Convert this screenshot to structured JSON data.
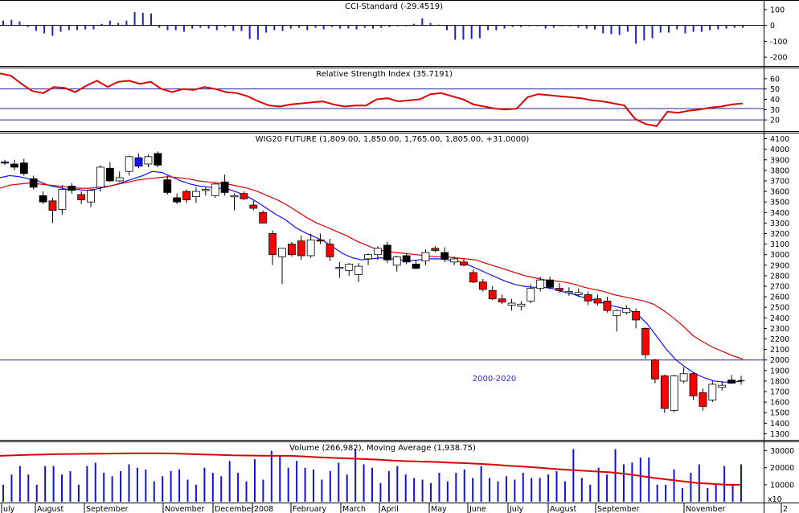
{
  "colors": {
    "background": "#ffffff",
    "frame": "#000000",
    "grid_h": "#2020a0",
    "cci_bar": "#1f1fc8",
    "rsi_line": "#e00000",
    "bull_fill": "#ffffff",
    "bear_fill": "#000000",
    "red_fill": "#ff0000",
    "blue_fill": "#1515ff",
    "ma_short": "#1010ff",
    "ma_long": "#d80000",
    "volume_bar": "#1111dd",
    "volume_ma": "#dd0000",
    "annotation": "#2b2bd6"
  },
  "panels": {
    "cci_title": "CCI-Standard (-29.4519)",
    "rsi_title": "Relative Strength Index (35.7191)",
    "price_title": "WIG20 FUTURE (1,809.00, 1,850.00, 1,765.00, 1,805.00, +31.0000)",
    "volume_title": "Volume (266,982), Moving Average (1,938.75)",
    "annotation": "2000-2020",
    "volume_unit": "x10",
    "right_edge_label": "2"
  },
  "months": [
    "uly",
    "August",
    "September",
    "November",
    "December",
    "2008",
    "February",
    "March",
    "April",
    "May",
    "June",
    "July",
    "August",
    "September",
    "November"
  ],
  "chart_data": [
    {
      "type": "bar",
      "title": "CCI-Standard (-29.4519)",
      "ylim": [
        -250,
        150
      ],
      "yticks": [
        100,
        0,
        -100,
        -200
      ],
      "values": [
        30,
        35,
        25,
        -10,
        -35,
        -50,
        -65,
        -40,
        -30,
        -30,
        -25,
        -25,
        10,
        30,
        15,
        30,
        85,
        80,
        75,
        -15,
        -30,
        -30,
        -40,
        -20,
        -15,
        -20,
        -30,
        -10,
        -35,
        -35,
        -85,
        -90,
        -45,
        -30,
        -35,
        -20,
        -15,
        -30,
        -15,
        -25,
        -10,
        -20,
        -20,
        -25,
        -15,
        -20,
        -15,
        -10,
        -5,
        -5,
        10,
        45,
        15,
        5,
        -30,
        -90,
        -90,
        -85,
        -80,
        -30,
        -30,
        -20,
        -10,
        -10,
        -5,
        -5,
        -20,
        -15,
        -5,
        -5,
        -15,
        -20,
        -25,
        -50,
        -55,
        -60,
        -40,
        -115,
        -95,
        -80,
        -45,
        -45,
        -25,
        -50,
        -40,
        -40,
        -30,
        -25,
        -20,
        -15,
        -15
      ]
    },
    {
      "type": "line",
      "title": "Relative Strength Index (35.7191)",
      "ylim": [
        10,
        70
      ],
      "yticks": [
        60,
        50,
        40,
        30,
        20
      ],
      "reference_lines": [
        50,
        31,
        20
      ],
      "values": [
        65,
        63,
        55,
        48,
        46,
        52,
        51,
        47,
        53,
        58,
        52,
        57,
        58,
        55,
        57,
        50,
        47,
        50,
        49,
        52,
        50,
        47,
        46,
        43,
        38,
        34,
        33,
        35,
        36,
        37,
        38,
        35,
        33,
        34,
        34,
        40,
        41,
        38,
        39,
        40,
        45,
        46,
        43,
        40,
        35,
        33,
        31,
        30,
        31,
        42,
        45,
        44,
        43,
        42,
        41,
        39,
        38,
        36,
        34,
        21,
        16,
        14,
        28,
        27,
        29,
        30,
        32,
        33,
        35,
        36
      ]
    },
    {
      "type": "candlestick",
      "title": "WIG20 FUTURE (1,809.00, 1,850.00, 1,765.00, 1,805.00, +31.0000)",
      "ylim": [
        1250,
        4150
      ],
      "yticks": [
        4100,
        4000,
        3900,
        3800,
        3700,
        3600,
        3500,
        3400,
        3300,
        3200,
        3100,
        3000,
        2900,
        2800,
        2700,
        2600,
        2500,
        2400,
        2300,
        2200,
        2100,
        2000,
        1900,
        1800,
        1700,
        1600,
        1500,
        1400,
        1300
      ],
      "reference_lines": [
        2000
      ],
      "candles": [
        {
          "o": 3870,
          "h": 3900,
          "l": 3850,
          "c": 3880,
          "col": "blue"
        },
        {
          "o": 3860,
          "h": 3900,
          "l": 3800,
          "c": 3830,
          "col": "black"
        },
        {
          "o": 3870,
          "h": 3910,
          "l": 3750,
          "c": 3770,
          "col": "black"
        },
        {
          "o": 3720,
          "h": 3750,
          "l": 3620,
          "c": 3640,
          "col": "black"
        },
        {
          "o": 3560,
          "h": 3600,
          "l": 3480,
          "c": 3500,
          "col": "black"
        },
        {
          "o": 3510,
          "h": 3540,
          "l": 3300,
          "c": 3420,
          "col": "red"
        },
        {
          "o": 3430,
          "h": 3660,
          "l": 3380,
          "c": 3620,
          "col": "white"
        },
        {
          "o": 3650,
          "h": 3680,
          "l": 3580,
          "c": 3610,
          "col": "black"
        },
        {
          "o": 3520,
          "h": 3600,
          "l": 3480,
          "c": 3570,
          "col": "red"
        },
        {
          "o": 3500,
          "h": 3620,
          "l": 3450,
          "c": 3610,
          "col": "white"
        },
        {
          "o": 3640,
          "h": 3850,
          "l": 3600,
          "c": 3830,
          "col": "white"
        },
        {
          "o": 3820,
          "h": 3880,
          "l": 3690,
          "c": 3700,
          "col": "black"
        },
        {
          "o": 3730,
          "h": 3790,
          "l": 3690,
          "c": 3700,
          "col": "white"
        },
        {
          "o": 3790,
          "h": 3940,
          "l": 3750,
          "c": 3930,
          "col": "white"
        },
        {
          "o": 3920,
          "h": 3960,
          "l": 3820,
          "c": 3840,
          "col": "blue"
        },
        {
          "o": 3860,
          "h": 3950,
          "l": 3830,
          "c": 3930,
          "col": "white"
        },
        {
          "o": 3960,
          "h": 3980,
          "l": 3830,
          "c": 3850,
          "col": "black"
        },
        {
          "o": 3710,
          "h": 3750,
          "l": 3570,
          "c": 3590,
          "col": "black"
        },
        {
          "o": 3540,
          "h": 3580,
          "l": 3480,
          "c": 3500,
          "col": "black"
        },
        {
          "o": 3600,
          "h": 3620,
          "l": 3490,
          "c": 3520,
          "col": "red"
        },
        {
          "o": 3550,
          "h": 3640,
          "l": 3490,
          "c": 3600,
          "col": "white"
        },
        {
          "o": 3610,
          "h": 3640,
          "l": 3560,
          "c": 3620,
          "col": "white"
        },
        {
          "o": 3560,
          "h": 3680,
          "l": 3540,
          "c": 3670,
          "col": "white"
        },
        {
          "o": 3690,
          "h": 3760,
          "l": 3560,
          "c": 3590,
          "col": "black"
        },
        {
          "o": 3560,
          "h": 3580,
          "l": 3420,
          "c": 3550,
          "col": "white"
        },
        {
          "o": 3580,
          "h": 3600,
          "l": 3520,
          "c": 3530,
          "col": "red"
        },
        {
          "o": 3470,
          "h": 3510,
          "l": 3420,
          "c": 3440,
          "col": "red"
        },
        {
          "o": 3400,
          "h": 3420,
          "l": 3310,
          "c": 3300,
          "col": "red"
        },
        {
          "o": 3200,
          "h": 3230,
          "l": 2900,
          "c": 3000,
          "col": "red"
        },
        {
          "o": 2980,
          "h": 3050,
          "l": 2720,
          "c": 3060,
          "col": "white"
        },
        {
          "o": 3000,
          "h": 3120,
          "l": 2980,
          "c": 3100,
          "col": "red"
        },
        {
          "o": 3130,
          "h": 3180,
          "l": 2950,
          "c": 2990,
          "col": "red"
        },
        {
          "o": 2990,
          "h": 3200,
          "l": 2970,
          "c": 3140,
          "col": "white"
        },
        {
          "o": 3140,
          "h": 3200,
          "l": 3100,
          "c": 3130,
          "col": "red"
        },
        {
          "o": 3100,
          "h": 3150,
          "l": 2940,
          "c": 2980,
          "col": "red"
        },
        {
          "o": 2880,
          "h": 2930,
          "l": 2780,
          "c": 2870,
          "col": "white"
        },
        {
          "o": 2850,
          "h": 2920,
          "l": 2800,
          "c": 2910,
          "col": "white"
        },
        {
          "o": 2810,
          "h": 2920,
          "l": 2740,
          "c": 2890,
          "col": "white"
        },
        {
          "o": 2960,
          "h": 3010,
          "l": 2900,
          "c": 3000,
          "col": "white"
        },
        {
          "o": 3000,
          "h": 3080,
          "l": 2950,
          "c": 3060,
          "col": "white"
        },
        {
          "o": 3090,
          "h": 3120,
          "l": 2920,
          "c": 2950,
          "col": "black"
        },
        {
          "o": 2900,
          "h": 2990,
          "l": 2840,
          "c": 2980,
          "col": "white"
        },
        {
          "o": 2990,
          "h": 3010,
          "l": 2910,
          "c": 2930,
          "col": "black"
        },
        {
          "o": 2910,
          "h": 2950,
          "l": 2860,
          "c": 2870,
          "col": "black"
        },
        {
          "o": 2940,
          "h": 3050,
          "l": 2900,
          "c": 3020,
          "col": "white"
        },
        {
          "o": 3060,
          "h": 3080,
          "l": 3020,
          "c": 3040,
          "col": "red"
        },
        {
          "o": 3020,
          "h": 3070,
          "l": 2930,
          "c": 2960,
          "col": "black"
        },
        {
          "o": 2930,
          "h": 2980,
          "l": 2900,
          "c": 2960,
          "col": "white"
        },
        {
          "o": 2930,
          "h": 2960,
          "l": 2890,
          "c": 2900,
          "col": "red"
        },
        {
          "o": 2830,
          "h": 2860,
          "l": 2730,
          "c": 2740,
          "col": "red"
        },
        {
          "o": 2740,
          "h": 2770,
          "l": 2650,
          "c": 2670,
          "col": "red"
        },
        {
          "o": 2660,
          "h": 2700,
          "l": 2570,
          "c": 2580,
          "col": "red"
        },
        {
          "o": 2580,
          "h": 2620,
          "l": 2530,
          "c": 2550,
          "col": "red"
        },
        {
          "o": 2540,
          "h": 2580,
          "l": 2470,
          "c": 2520,
          "col": "white"
        },
        {
          "o": 2510,
          "h": 2560,
          "l": 2470,
          "c": 2530,
          "col": "white"
        },
        {
          "o": 2560,
          "h": 2720,
          "l": 2540,
          "c": 2680,
          "col": "white"
        },
        {
          "o": 2680,
          "h": 2790,
          "l": 2650,
          "c": 2760,
          "col": "white"
        },
        {
          "o": 2760,
          "h": 2790,
          "l": 2670,
          "c": 2690,
          "col": "black"
        },
        {
          "o": 2680,
          "h": 2730,
          "l": 2640,
          "c": 2660,
          "col": "red"
        },
        {
          "o": 2650,
          "h": 2690,
          "l": 2610,
          "c": 2640,
          "col": "white"
        },
        {
          "o": 2640,
          "h": 2680,
          "l": 2600,
          "c": 2620,
          "col": "white"
        },
        {
          "o": 2620,
          "h": 2650,
          "l": 2520,
          "c": 2560,
          "col": "red"
        },
        {
          "o": 2580,
          "h": 2620,
          "l": 2520,
          "c": 2540,
          "col": "red"
        },
        {
          "o": 2560,
          "h": 2600,
          "l": 2450,
          "c": 2470,
          "col": "red"
        },
        {
          "o": 2420,
          "h": 2480,
          "l": 2270,
          "c": 2470,
          "col": "white"
        },
        {
          "o": 2450,
          "h": 2520,
          "l": 2430,
          "c": 2490,
          "col": "white"
        },
        {
          "o": 2460,
          "h": 2490,
          "l": 2300,
          "c": 2380,
          "col": "red"
        },
        {
          "o": 2300,
          "h": 2310,
          "l": 2010,
          "c": 2050,
          "col": "red"
        },
        {
          "o": 2000,
          "h": 2010,
          "l": 1780,
          "c": 1820,
          "col": "red"
        },
        {
          "o": 1850,
          "h": 1860,
          "l": 1500,
          "c": 1540,
          "col": "red"
        },
        {
          "o": 1520,
          "h": 1860,
          "l": 1500,
          "c": 1850,
          "col": "white"
        },
        {
          "o": 1870,
          "h": 1930,
          "l": 1780,
          "c": 1800,
          "col": "white"
        },
        {
          "o": 1870,
          "h": 1880,
          "l": 1620,
          "c": 1660,
          "col": "red"
        },
        {
          "o": 1690,
          "h": 1730,
          "l": 1520,
          "c": 1560,
          "col": "red"
        },
        {
          "o": 1620,
          "h": 1800,
          "l": 1600,
          "c": 1770,
          "col": "white"
        },
        {
          "o": 1740,
          "h": 1800,
          "l": 1710,
          "c": 1760,
          "col": "white"
        },
        {
          "o": 1810,
          "h": 1860,
          "l": 1780,
          "c": 1780,
          "col": "black"
        },
        {
          "o": 1809,
          "h": 1850,
          "l": 1765,
          "c": 1805,
          "col": "cross"
        }
      ],
      "series": [
        {
          "name": "MA-short",
          "values": [
            3730,
            3750,
            3740,
            3720,
            3700,
            3660,
            3640,
            3620,
            3620,
            3610,
            3620,
            3640,
            3660,
            3690,
            3720,
            3750,
            3790,
            3780,
            3740,
            3700,
            3670,
            3650,
            3640,
            3630,
            3620,
            3590,
            3550,
            3500,
            3440,
            3380,
            3330,
            3260,
            3210,
            3170,
            3130,
            3070,
            3010,
            2970,
            2950,
            2960,
            2970,
            2960,
            2950,
            2940,
            2950,
            2960,
            2960,
            2950,
            2940,
            2910,
            2870,
            2830,
            2790,
            2750,
            2720,
            2700,
            2690,
            2690,
            2680,
            2650,
            2630,
            2600,
            2580,
            2550,
            2520,
            2500,
            2480,
            2430,
            2340,
            2220,
            2100,
            2000,
            1930,
            1870,
            1830,
            1800,
            1790,
            1790,
            1800
          ]
        },
        {
          "name": "MA-long",
          "values": [
            3630,
            3660,
            3670,
            3680,
            3670,
            3660,
            3650,
            3640,
            3630,
            3630,
            3640,
            3650,
            3670,
            3690,
            3710,
            3720,
            3730,
            3740,
            3730,
            3720,
            3700,
            3690,
            3680,
            3670,
            3650,
            3630,
            3600,
            3560,
            3520,
            3470,
            3410,
            3350,
            3300,
            3260,
            3220,
            3180,
            3130,
            3090,
            3050,
            3030,
            3020,
            3010,
            3000,
            2990,
            2980,
            2980,
            2970,
            2960,
            2950,
            2920,
            2890,
            2860,
            2830,
            2800,
            2780,
            2760,
            2750,
            2740,
            2720,
            2690,
            2670,
            2650,
            2620,
            2600,
            2580,
            2560,
            2530,
            2470,
            2400,
            2320,
            2230,
            2170,
            2120,
            2080,
            2040,
            2010
          ]
        }
      ]
    },
    {
      "type": "bar",
      "title": "Volume (266,982), Moving Average (1,938.75)",
      "ylim": [
        0,
        35000
      ],
      "yticks": [
        30000,
        20000,
        10000
      ],
      "values": [
        10000,
        16000,
        21000,
        16000,
        10000,
        21000,
        21000,
        16000,
        18000,
        10000,
        21000,
        23000,
        17000,
        15000,
        18000,
        22000,
        20000,
        19000,
        12000,
        15000,
        18000,
        19000,
        13000,
        10000,
        20000,
        17000,
        15000,
        24000,
        17000,
        12000,
        25000,
        13000,
        30000,
        27000,
        20000,
        24000,
        20000,
        19000,
        13000,
        18000,
        23000,
        16000,
        31000,
        22000,
        20000,
        11000,
        18000,
        21000,
        16000,
        14000,
        13000,
        11000,
        17000,
        12000,
        17000,
        19000,
        14000,
        21000,
        14000,
        12000,
        15000,
        13000,
        17000,
        14000,
        14000,
        16000,
        18000,
        12000,
        31000,
        14000,
        10000,
        20000,
        16000,
        31000,
        22000,
        23000,
        26000,
        26000,
        10000,
        10000,
        19000,
        8000,
        17000,
        22000,
        8000,
        10000,
        21000,
        10000,
        22000
      ],
      "series": [
        {
          "name": "Moving Average",
          "values": [
            27000,
            27300,
            27600,
            27800,
            28000,
            28100,
            28200,
            28300,
            28400,
            28500,
            28500,
            28500,
            28400,
            28100,
            27800,
            27600,
            27300,
            27200,
            27100,
            27000,
            27000,
            26600,
            26100,
            25800,
            25500,
            25100,
            24800,
            24200,
            23900,
            23600,
            23400,
            23000,
            22700,
            22300,
            21800,
            21200,
            20700,
            20100,
            19400,
            18800,
            18300,
            17800,
            17300,
            16400,
            15300,
            14000,
            13000,
            12000,
            11000,
            10500,
            10000,
            10000
          ]
        }
      ]
    }
  ]
}
